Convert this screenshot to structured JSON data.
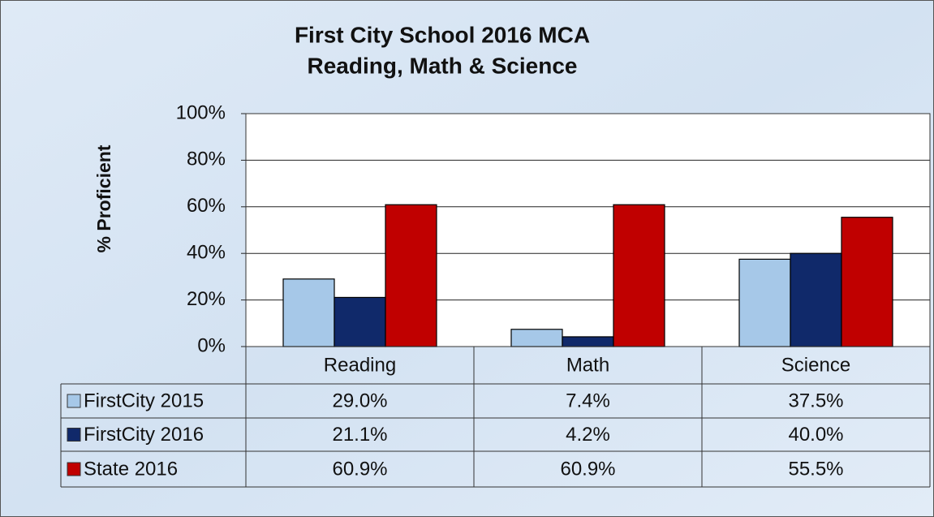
{
  "chart_data": {
    "type": "bar",
    "title": "First City School 2016 MCA",
    "subtitle": "Reading, Math & Science",
    "y_label": "% Proficient",
    "categories": [
      "Reading",
      "Math",
      "Science"
    ],
    "series": [
      {
        "name": "FirstCity 2015",
        "color": "#a6c8e8",
        "values": [
          29.0,
          7.4,
          37.5
        ],
        "value_labels": [
          "29.0%",
          "7.4%",
          "37.5%"
        ]
      },
      {
        "name": "FirstCity 2016",
        "color": "#10296a",
        "values": [
          21.1,
          4.2,
          40.0
        ],
        "value_labels": [
          "21.1%",
          "4.2%",
          "40.0%"
        ]
      },
      {
        "name": "State 2016",
        "color": "#c00000",
        "values": [
          60.9,
          60.9,
          55.5
        ],
        "value_labels": [
          "60.9%",
          "60.9%",
          "55.5%"
        ]
      }
    ],
    "ylim": [
      0,
      100
    ],
    "yticks": [
      {
        "value": 0,
        "label": "0%"
      },
      {
        "value": 20,
        "label": "20%"
      },
      {
        "value": 40,
        "label": "40%"
      },
      {
        "value": 60,
        "label": "60%"
      },
      {
        "value": 80,
        "label": "80%"
      },
      {
        "value": 100,
        "label": "100%"
      }
    ],
    "grid": true
  }
}
